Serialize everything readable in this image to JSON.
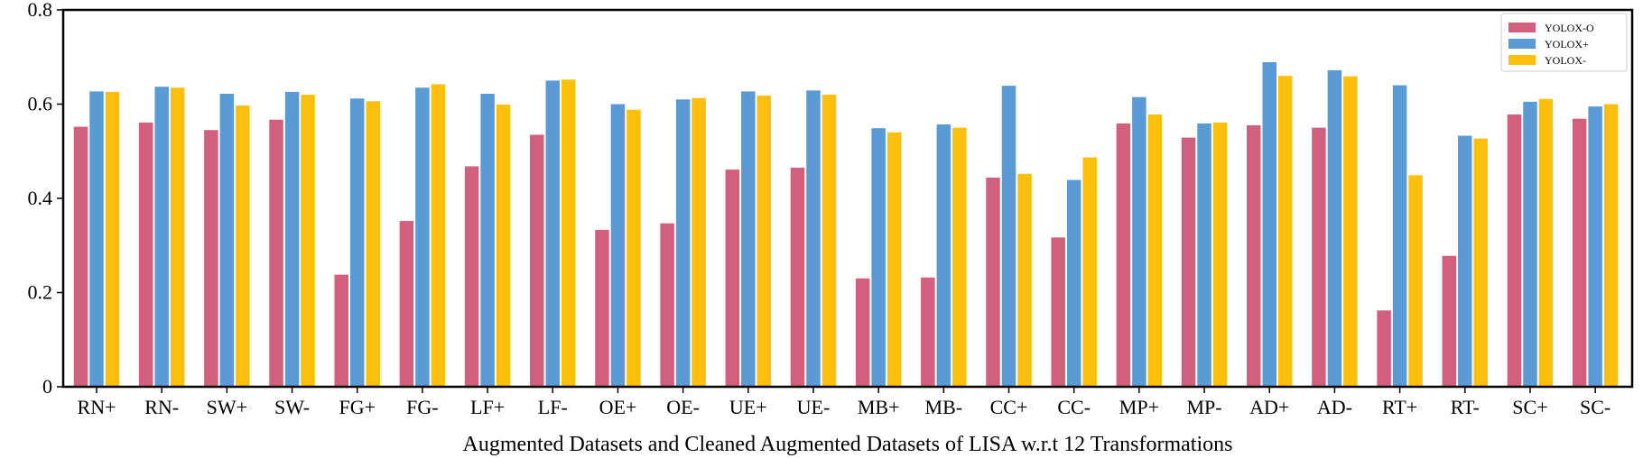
{
  "chart_data": {
    "type": "bar",
    "xlabel": "Augmented Datasets and Cleaned Augmented Datasets of LISA w.r.t 12 Transformations",
    "ylabel": "",
    "ylim": [
      0,
      0.8
    ],
    "yticks": [
      "0",
      "0.2",
      "0.4",
      "0.6",
      "0.8"
    ],
    "grid": false,
    "legend_position": "top-right",
    "categories": [
      "RN+",
      "RN-",
      "SW+",
      "SW-",
      "FG+",
      "FG-",
      "LF+",
      "LF-",
      "OE+",
      "OE-",
      "UE+",
      "UE-",
      "MB+",
      "MB-",
      "CC+",
      "CC-",
      "MP+",
      "MP-",
      "AD+",
      "AD-",
      "RT+",
      "RT-",
      "SC+",
      "SC-"
    ],
    "series": [
      {
        "name": "YOLOX-O",
        "color": "#d35f7f",
        "values": [
          0.552,
          0.561,
          0.545,
          0.567,
          0.238,
          0.352,
          0.468,
          0.535,
          0.333,
          0.347,
          0.461,
          0.465,
          0.23,
          0.232,
          0.444,
          0.317,
          0.559,
          0.529,
          0.555,
          0.55,
          0.162,
          0.278,
          0.578,
          0.569
        ]
      },
      {
        "name": "YOLOX+",
        "color": "#5a9bd5",
        "values": [
          0.627,
          0.637,
          0.622,
          0.626,
          0.612,
          0.635,
          0.622,
          0.65,
          0.6,
          0.61,
          0.627,
          0.629,
          0.549,
          0.557,
          0.639,
          0.439,
          0.615,
          0.559,
          0.689,
          0.672,
          0.64,
          0.533,
          0.605,
          0.595
        ]
      },
      {
        "name": "YOLOX-",
        "color": "#fcbf0c",
        "values": [
          0.626,
          0.635,
          0.597,
          0.62,
          0.606,
          0.642,
          0.599,
          0.652,
          0.588,
          0.613,
          0.618,
          0.62,
          0.54,
          0.55,
          0.452,
          0.487,
          0.578,
          0.561,
          0.66,
          0.659,
          0.449,
          0.527,
          0.611,
          0.6
        ]
      }
    ]
  }
}
